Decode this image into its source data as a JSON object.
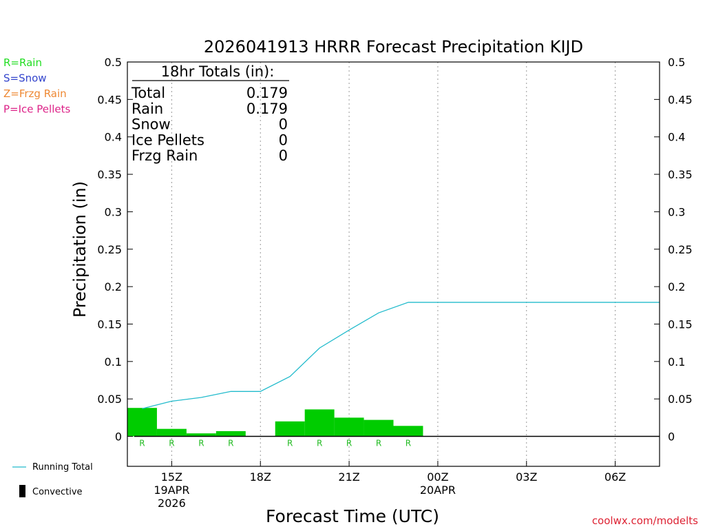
{
  "chart_data": {
    "type": "bar",
    "title": "2026041913 HRRR Forecast Precipitation KIJD",
    "xlabel": "Forecast Time (UTC)",
    "ylabel": "Precipitation (in)",
    "ylim": [
      -0.04,
      0.5
    ],
    "y_ticks": [
      0,
      0.05,
      0.1,
      0.15,
      0.2,
      0.25,
      0.3,
      0.35,
      0.4,
      0.45,
      0.5
    ],
    "x_range_hours": [
      13.5,
      31.5
    ],
    "x_ticks": [
      {
        "hour": 15,
        "lines": [
          "15Z",
          "19APR",
          "2026"
        ]
      },
      {
        "hour": 18,
        "lines": [
          "18Z"
        ]
      },
      {
        "hour": 21,
        "lines": [
          "21Z"
        ]
      },
      {
        "hour": 24,
        "lines": [
          "00Z",
          "20APR"
        ]
      },
      {
        "hour": 27,
        "lines": [
          "03Z"
        ]
      },
      {
        "hour": 30,
        "lines": [
          "06Z"
        ]
      }
    ],
    "grid": "vertical-dotted",
    "hours": [
      14,
      15,
      16,
      17,
      18,
      19,
      20,
      21,
      22,
      23,
      24,
      25,
      26,
      27,
      28,
      29,
      30,
      31
    ],
    "hourly_precip": [
      0.038,
      0.01,
      0.004,
      0.007,
      0.0,
      0.02,
      0.036,
      0.025,
      0.022,
      0.014,
      0,
      0,
      0,
      0,
      0,
      0,
      0,
      0
    ],
    "ptype": [
      "R",
      "R",
      "R",
      "R",
      "",
      "R",
      "R",
      "R",
      "R",
      "R",
      "",
      "",
      "",
      "",
      "",
      "",
      "",
      ""
    ],
    "running_total": {
      "name": "Running Total",
      "x": [
        14,
        15,
        16,
        17,
        18,
        19,
        20,
        21,
        22,
        23,
        24,
        25,
        26,
        27,
        28,
        29,
        30,
        31.5
      ],
      "y": [
        0.037,
        0.047,
        0.052,
        0.06,
        0.06,
        0.08,
        0.118,
        0.142,
        0.165,
        0.179,
        0.179,
        0.179,
        0.179,
        0.179,
        0.179,
        0.179,
        0.179,
        0.179
      ]
    },
    "totals_box": {
      "heading": "18hr Totals (in):",
      "rows": [
        {
          "label": "Total",
          "value": "0.179"
        },
        {
          "label": "Rain",
          "value": "0.179"
        },
        {
          "label": "Snow",
          "value": "0"
        },
        {
          "label": "Ice Pellets",
          "value": "0"
        },
        {
          "label": "Frzg Rain",
          "value": "0"
        }
      ]
    },
    "ptype_legend": [
      {
        "text": "R=Rain",
        "color": "#22dd22"
      },
      {
        "text": "S=Snow",
        "color": "#3344cc"
      },
      {
        "text": "Z=Frzg Rain",
        "color": "#ee8833"
      },
      {
        "text": "P=Ice Pellets",
        "color": "#dd2288"
      }
    ],
    "series_legend": {
      "line": "Running Total",
      "bar": "Convective"
    },
    "colors": {
      "bar": "#00cc00",
      "line": "#22bbcc",
      "ptype_mark": "#22bb22"
    },
    "credit": "coolwx.com/modelts",
    "credit_color": "#dd2233"
  }
}
